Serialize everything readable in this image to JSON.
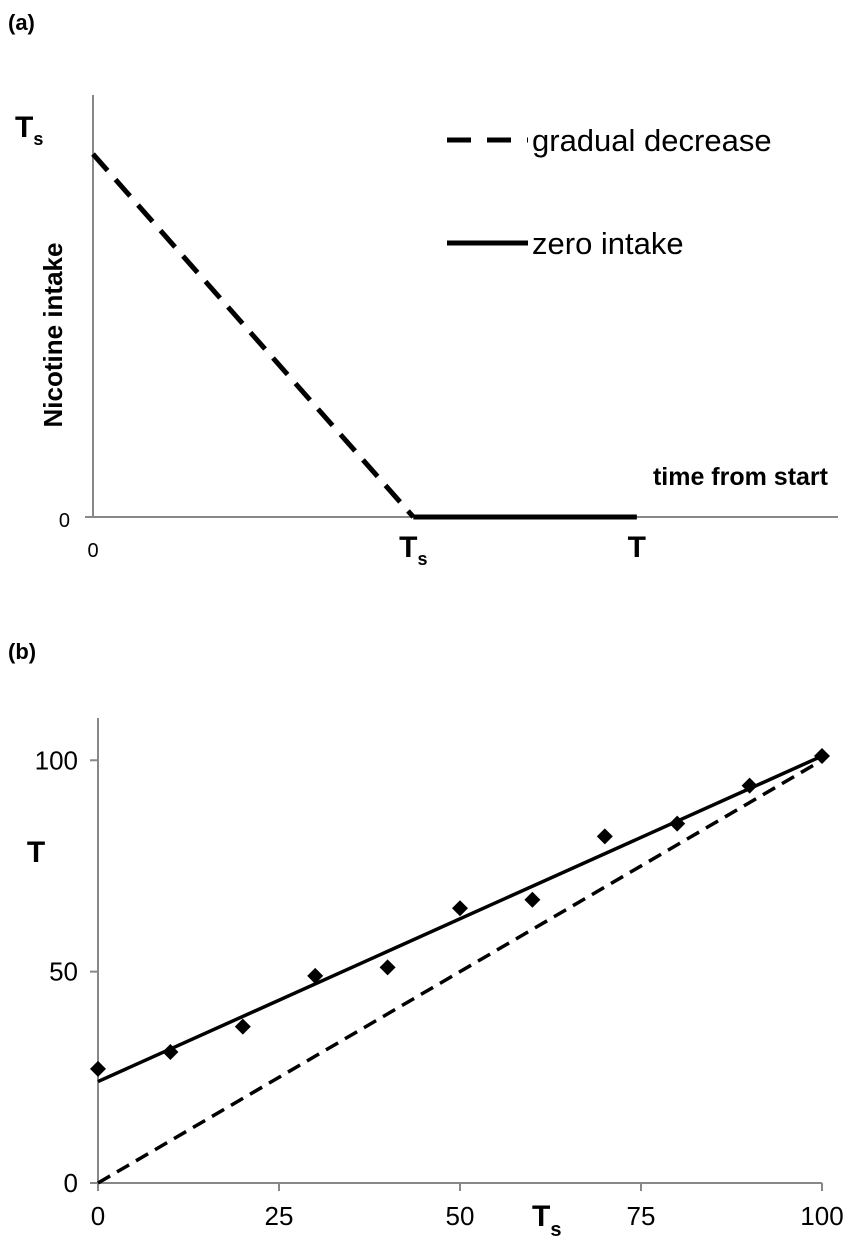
{
  "chart_data": [
    {
      "panel_label": "(a)",
      "type": "line",
      "ylabel": "Nicotine intake",
      "xlabel": "time from start",
      "x_tick_labels": [
        {
          "text": "0",
          "sub": ""
        },
        {
          "text": "T",
          "sub": "s"
        },
        {
          "text": "T",
          "sub": ""
        }
      ],
      "y_tick_labels": [
        {
          "text": "0",
          "sub": ""
        },
        {
          "text": "T",
          "sub": "s"
        }
      ],
      "xlim": [
        0,
        100
      ],
      "ylim": [
        0,
        100
      ],
      "series": [
        {
          "name": "gradual decrease",
          "style": "dashed",
          "x": [
            0,
            43
          ],
          "y": [
            86,
            0
          ]
        },
        {
          "name": "zero intake",
          "style": "solid",
          "x": [
            43,
            73
          ],
          "y": [
            0,
            0
          ]
        }
      ],
      "legend": "top-right",
      "grid": false
    },
    {
      "panel_label": "(b)",
      "type": "scatter",
      "xlabel": "T",
      "xlabel_sub": "s",
      "ylabel": "T",
      "xlim": [
        0,
        100
      ],
      "ylim": [
        0,
        110
      ],
      "x_ticks": [
        0,
        25,
        50,
        75,
        100
      ],
      "y_ticks": [
        0,
        50,
        100
      ],
      "points": {
        "x": [
          0,
          10,
          20,
          30,
          40,
          50,
          60,
          70,
          80,
          90,
          100
        ],
        "y": [
          27,
          31,
          37,
          49,
          51,
          65,
          67,
          82,
          85,
          94,
          101
        ]
      },
      "fit_line": {
        "style": "solid",
        "x": [
          0,
          100
        ],
        "y": [
          24,
          101
        ]
      },
      "reference_line": {
        "style": "dashed",
        "x": [
          0,
          100
        ],
        "y": [
          0,
          100
        ]
      },
      "grid": false
    }
  ]
}
